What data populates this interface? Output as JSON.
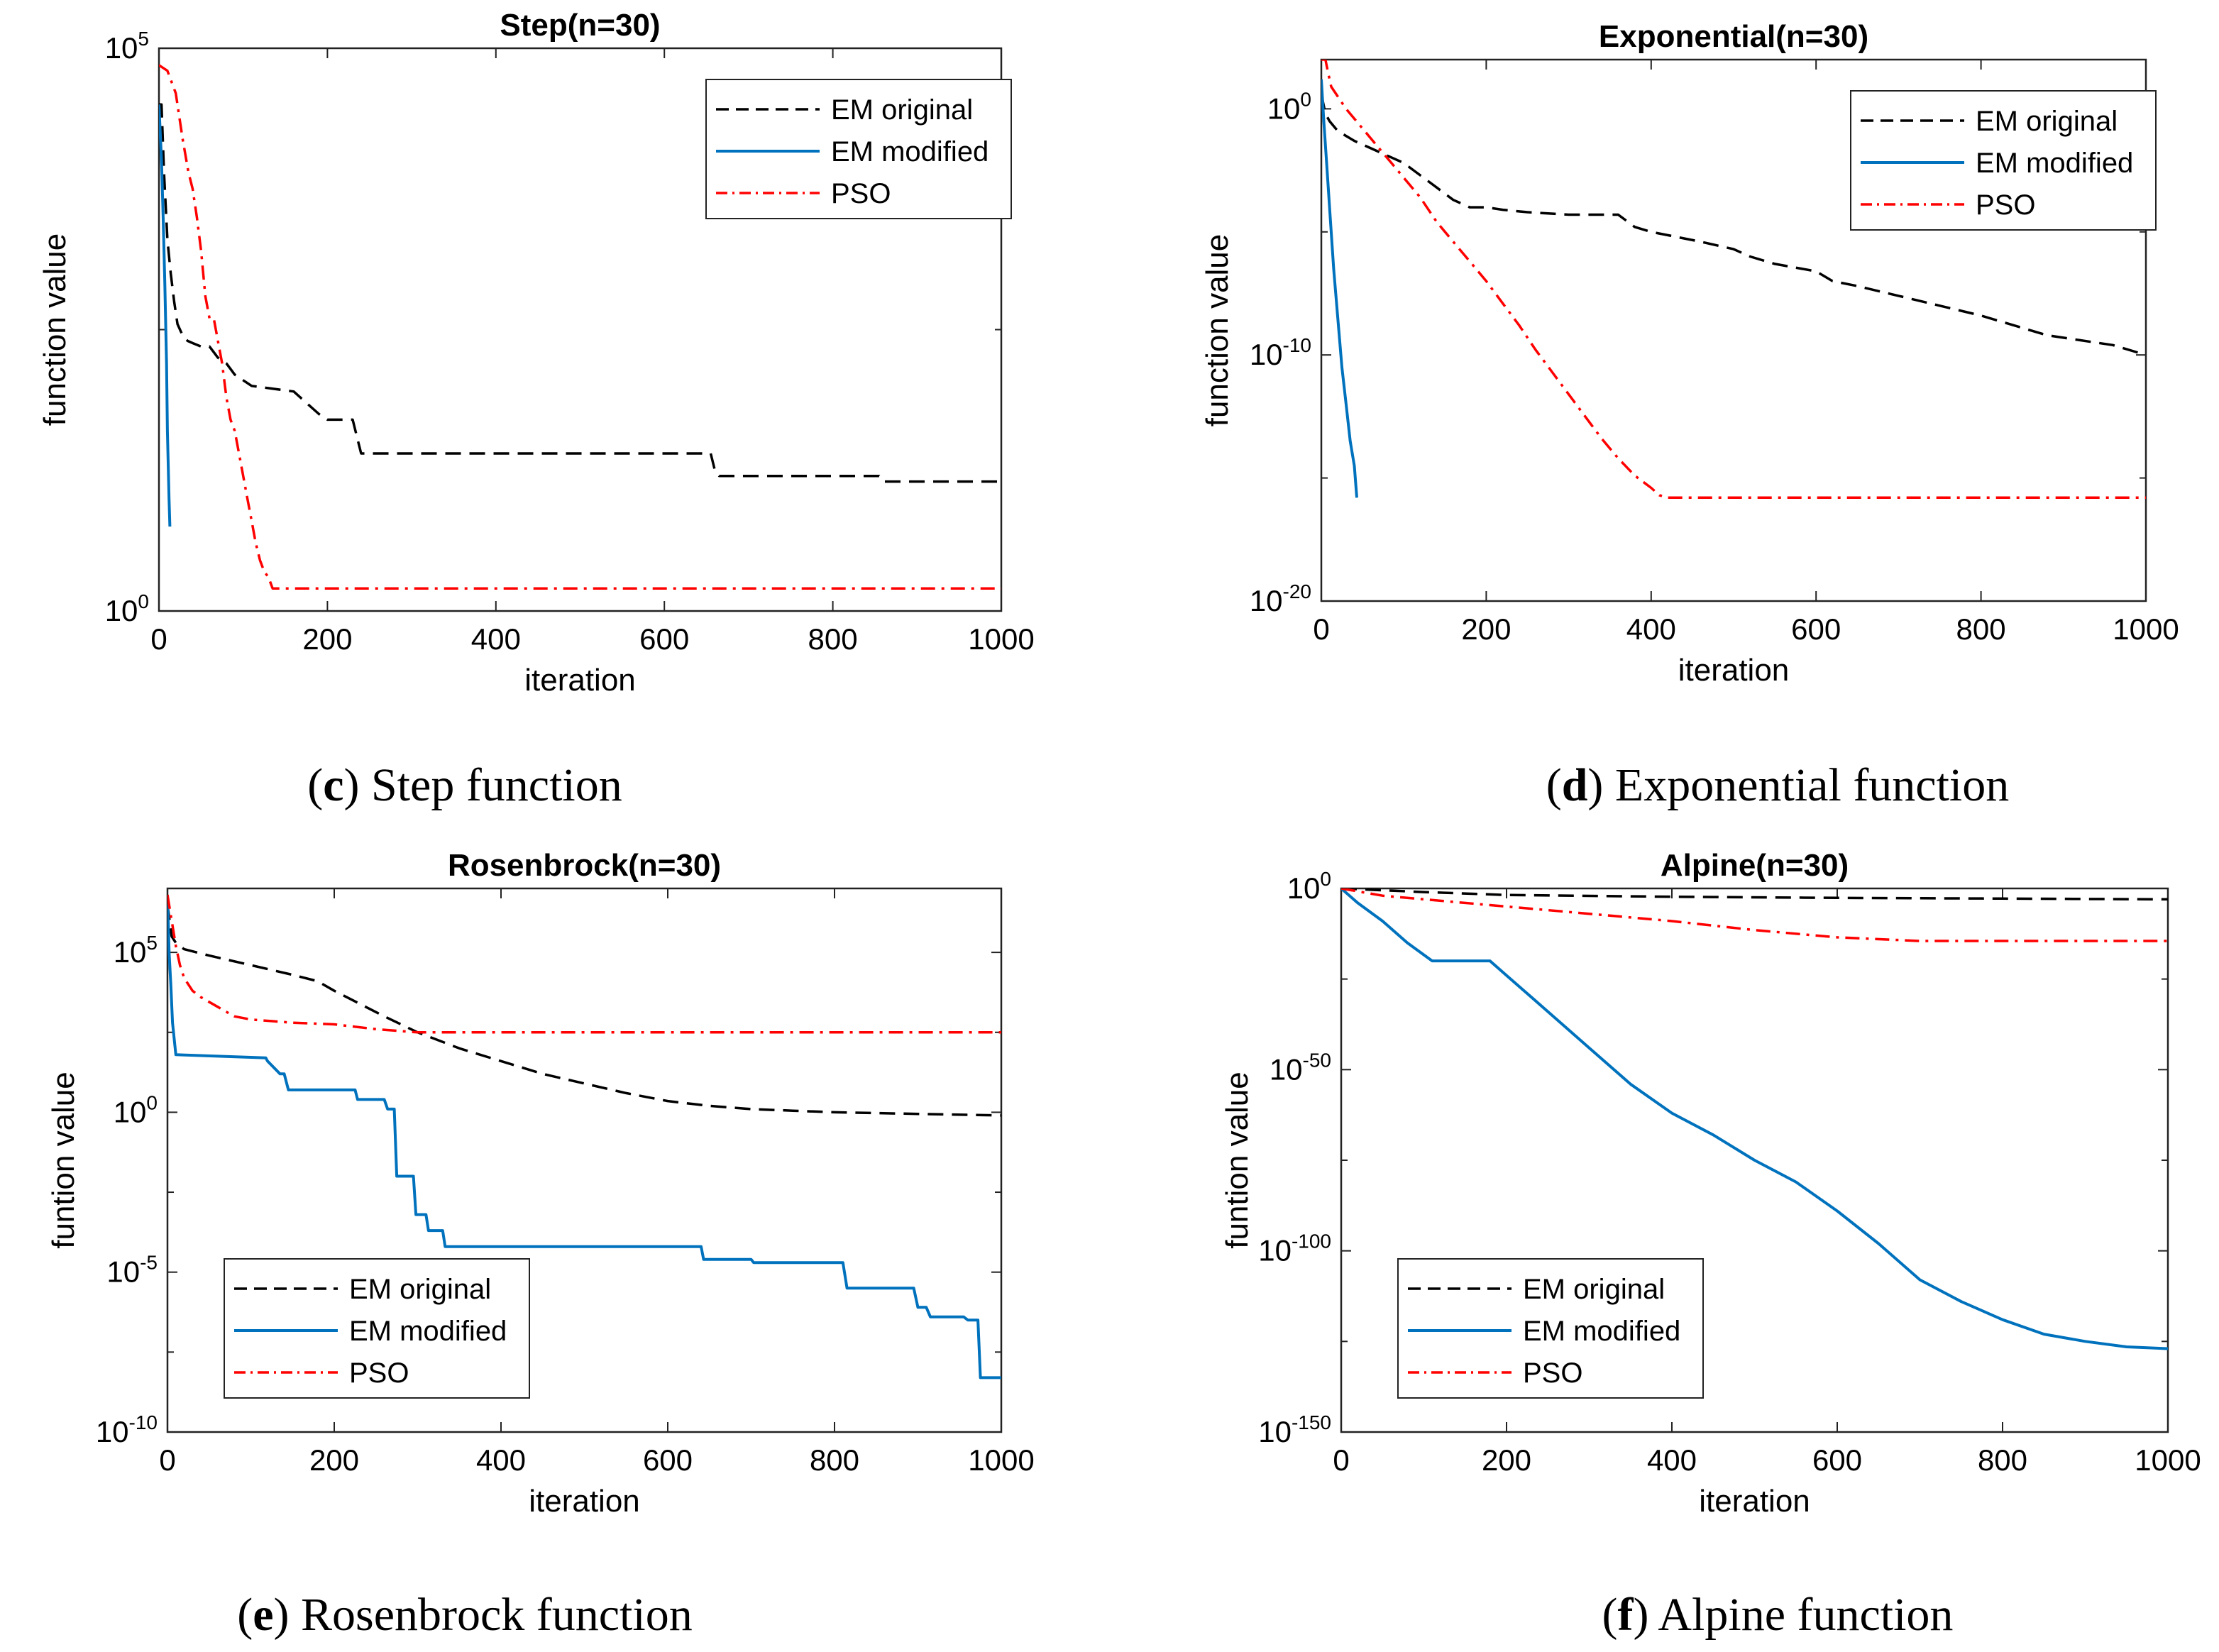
{
  "chart_data": [
    {
      "type": "line",
      "title": "Step(n=30)",
      "xlabel": "iteration",
      "ylabel": "function value",
      "xlim": [
        0,
        1000
      ],
      "ylim_log10": [
        0,
        5
      ],
      "yscale": "log",
      "xticks": [
        "0",
        "200",
        "400",
        "600",
        "800",
        "1000"
      ],
      "yticks": [
        {
          "base": "10",
          "exp": "0",
          "v": 0
        },
        {
          "base": "10",
          "exp": "5",
          "v": 5
        }
      ],
      "caption": {
        "letter": "c",
        "text": " Step function"
      },
      "legend_position": "top-right",
      "legend": [
        "EM original",
        "EM modified",
        "PSO"
      ],
      "series": [
        {
          "name": "EM original",
          "style": "dashed",
          "color": "#000000",
          "x": [
            0,
            3,
            6,
            10,
            14,
            18,
            22,
            28,
            34,
            40,
            50,
            60,
            70,
            80,
            90,
            110,
            160,
            175,
            190,
            200,
            230,
            235,
            240,
            260,
            600,
            655,
            660,
            665,
            850,
            855,
            860,
            1000
          ],
          "y": [
            4.5,
            4.5,
            3.9,
            3.3,
            3.0,
            2.75,
            2.55,
            2.45,
            2.4,
            2.38,
            2.35,
            2.35,
            2.25,
            2.2,
            2.1,
            2.0,
            1.95,
            1.85,
            1.75,
            1.7,
            1.7,
            1.55,
            1.4,
            1.4,
            1.4,
            1.4,
            1.25,
            1.2,
            1.2,
            1.2,
            1.15,
            1.15
          ]
        },
        {
          "name": "EM modified",
          "style": "solid",
          "color": "#0072BD",
          "x": [
            0,
            3,
            5,
            7,
            9,
            10,
            12,
            13
          ],
          "y": [
            4.5,
            4.0,
            3.5,
            2.9,
            2.2,
            1.6,
            1.0,
            0.75
          ]
        },
        {
          "name": "PSO",
          "style": "dashdot",
          "color": "#FF0000",
          "x": [
            0,
            10,
            20,
            28,
            35,
            40,
            45,
            50,
            55,
            60,
            65,
            70,
            75,
            80,
            85,
            90,
            95,
            100,
            105,
            110,
            115,
            120,
            125,
            130,
            135,
            1000
          ],
          "y": [
            4.85,
            4.8,
            4.6,
            4.2,
            3.9,
            3.75,
            3.5,
            3.2,
            2.8,
            2.6,
            2.6,
            2.4,
            2.2,
            1.9,
            1.7,
            1.6,
            1.4,
            1.2,
            1.0,
            0.8,
            0.6,
            0.45,
            0.35,
            0.3,
            0.2,
            0.2
          ]
        }
      ]
    },
    {
      "type": "line",
      "title": "Exponential(n=30)",
      "xlabel": "iteration",
      "ylabel": "function value",
      "xlim": [
        0,
        1000
      ],
      "ylim_log10": [
        -20,
        2
      ],
      "yscale": "log",
      "xticks": [
        "0",
        "200",
        "400",
        "600",
        "800",
        "1000"
      ],
      "yticks": [
        {
          "base": "10",
          "exp": "0",
          "v": 0
        },
        {
          "base": "10",
          "exp": "-10",
          "v": -10
        },
        {
          "base": "10",
          "exp": "-20",
          "v": -20
        }
      ],
      "caption": {
        "letter": "d",
        "text": " Exponential function"
      },
      "legend_position": "top-right",
      "legend": [
        "EM original",
        "EM modified",
        "PSO"
      ],
      "series": [
        {
          "name": "EM original",
          "style": "dashed",
          "color": "#000000",
          "x": [
            0,
            5,
            10,
            20,
            40,
            60,
            80,
            100,
            120,
            140,
            160,
            180,
            200,
            220,
            250,
            300,
            320,
            360,
            380,
            400,
            430,
            460,
            500,
            520,
            550,
            600,
            620,
            650,
            700,
            750,
            800,
            850,
            880,
            920,
            960,
            1000
          ],
          "y": [
            0.6,
            -0.2,
            -0.5,
            -0.9,
            -1.3,
            -1.6,
            -1.9,
            -2.2,
            -2.7,
            -3.2,
            -3.7,
            -4.0,
            -4.0,
            -4.1,
            -4.2,
            -4.3,
            -4.3,
            -4.3,
            -4.8,
            -5.0,
            -5.2,
            -5.4,
            -5.7,
            -6.0,
            -6.3,
            -6.6,
            -7.0,
            -7.2,
            -7.6,
            -8.0,
            -8.4,
            -8.9,
            -9.2,
            -9.4,
            -9.6,
            -10.0
          ]
        },
        {
          "name": "EM modified",
          "style": "solid",
          "color": "#0072BD",
          "x": [
            0,
            3,
            6,
            10,
            15,
            20,
            25,
            30,
            35,
            40,
            43
          ],
          "y": [
            1.2,
            -0.5,
            -2.0,
            -4.0,
            -6.5,
            -8.5,
            -10.5,
            -12.0,
            -13.5,
            -14.5,
            -15.8
          ]
        },
        {
          "name": "PSO",
          "style": "dashdot",
          "color": "#FF0000",
          "x": [
            0,
            5,
            8,
            12,
            20,
            30,
            40,
            50,
            60,
            70,
            80,
            90,
            100,
            120,
            140,
            160,
            180,
            200,
            220,
            240,
            260,
            280,
            300,
            320,
            340,
            360,
            380,
            400,
            410,
            420,
            1000
          ],
          "y": [
            2.0,
            2.0,
            1.5,
            0.9,
            0.5,
            0.0,
            -0.4,
            -0.8,
            -1.2,
            -1.6,
            -2.0,
            -2.4,
            -2.8,
            -3.6,
            -4.6,
            -5.4,
            -6.2,
            -7.0,
            -7.9,
            -8.8,
            -9.8,
            -10.7,
            -11.6,
            -12.5,
            -13.4,
            -14.2,
            -14.9,
            -15.4,
            -15.7,
            -15.8,
            -15.8
          ]
        }
      ]
    },
    {
      "type": "line",
      "title": "Rosenbrock(n=30)",
      "xlabel": "iteration",
      "ylabel": "funtion value",
      "xlim": [
        0,
        1000
      ],
      "ylim_log10": [
        -10,
        7
      ],
      "yscale": "log",
      "xticks": [
        "0",
        "200",
        "400",
        "600",
        "800",
        "1000"
      ],
      "yticks": [
        {
          "base": "10",
          "exp": "5",
          "v": 5
        },
        {
          "base": "10",
          "exp": "0",
          "v": 0
        },
        {
          "base": "10",
          "exp": "-5",
          "v": -5
        },
        {
          "base": "10",
          "exp": "-10",
          "v": -10
        }
      ],
      "caption": {
        "letter": "e",
        "text": " Rosenbrock function"
      },
      "legend_position": "bottom-left",
      "legend": [
        "EM original",
        "EM modified",
        "PSO"
      ],
      "series": [
        {
          "name": "EM original",
          "style": "dashed",
          "color": "#000000",
          "x": [
            0,
            5,
            10,
            20,
            50,
            100,
            150,
            180,
            200,
            230,
            260,
            300,
            350,
            400,
            450,
            500,
            550,
            600,
            650,
            700,
            750,
            800,
            900,
            1000
          ],
          "y": [
            6.5,
            5.5,
            5.3,
            5.1,
            4.9,
            4.6,
            4.3,
            4.1,
            3.8,
            3.4,
            3.0,
            2.5,
            2.0,
            1.6,
            1.2,
            0.9,
            0.6,
            0.35,
            0.2,
            0.1,
            0.05,
            0.0,
            -0.05,
            -0.1
          ]
        },
        {
          "name": "EM modified",
          "style": "solid",
          "color": "#0072BD",
          "x": [
            0,
            2,
            4,
            6,
            10,
            118,
            120,
            135,
            140,
            145,
            148,
            225,
            228,
            260,
            264,
            272,
            275,
            295,
            298,
            310,
            313,
            330,
            333,
            640,
            643,
            700,
            703,
            810,
            815,
            895,
            900,
            910,
            915,
            955,
            960,
            972,
            975,
            1000
          ],
          "y": [
            6.8,
            5.0,
            4.0,
            2.8,
            1.8,
            1.7,
            1.6,
            1.2,
            1.2,
            0.7,
            0.7,
            0.7,
            0.4,
            0.4,
            0.1,
            0.1,
            -2.0,
            -2.0,
            -3.2,
            -3.2,
            -3.7,
            -3.7,
            -4.2,
            -4.2,
            -4.6,
            -4.6,
            -4.7,
            -4.7,
            -5.5,
            -5.5,
            -6.1,
            -6.1,
            -6.4,
            -6.4,
            -6.5,
            -6.5,
            -8.3,
            -8.3
          ]
        },
        {
          "name": "PSO",
          "style": "dashdot",
          "color": "#FF0000",
          "x": [
            0,
            5,
            10,
            15,
            20,
            30,
            40,
            60,
            80,
            100,
            150,
            200,
            250,
            300,
            400,
            500,
            700,
            1000
          ],
          "y": [
            6.8,
            6.0,
            5.2,
            4.6,
            4.2,
            3.8,
            3.6,
            3.3,
            3.0,
            2.9,
            2.8,
            2.75,
            2.6,
            2.5,
            2.5,
            2.5,
            2.5,
            2.5
          ]
        }
      ]
    },
    {
      "type": "line",
      "title": "Alpine(n=30)",
      "xlabel": "iteration",
      "ylabel": "funtion value",
      "xlim": [
        0,
        1000
      ],
      "ylim_log10": [
        -150,
        0
      ],
      "yscale": "log",
      "xticks": [
        "0",
        "200",
        "400",
        "600",
        "800",
        "1000"
      ],
      "yticks": [
        {
          "base": "10",
          "exp": "0",
          "v": 0
        },
        {
          "base": "10",
          "exp": "-50",
          "v": -50
        },
        {
          "base": "10",
          "exp": "-100",
          "v": -100
        },
        {
          "base": "10",
          "exp": "-150",
          "v": -150
        }
      ],
      "caption": {
        "letter": "f",
        "text": " Alpine function"
      },
      "legend_position": "bottom-left",
      "legend": [
        "EM original",
        "EM modified",
        "PSO"
      ],
      "series": [
        {
          "name": "EM original",
          "style": "dashed",
          "color": "#000000",
          "x": [
            0,
            100,
            200,
            400,
            600,
            800,
            1000
          ],
          "y": [
            0,
            -1.0,
            -1.8,
            -2.3,
            -2.6,
            -2.8,
            -3.0
          ]
        },
        {
          "name": "EM modified",
          "style": "solid",
          "color": "#0072BD",
          "x": [
            0,
            20,
            50,
            80,
            110,
            180,
            200,
            250,
            300,
            350,
            400,
            450,
            500,
            550,
            600,
            650,
            700,
            750,
            800,
            850,
            900,
            950,
            1000
          ],
          "y": [
            0,
            -4.0,
            -9.0,
            -15.0,
            -20.0,
            -20.0,
            -24.0,
            -34.0,
            -44.0,
            -54.0,
            -62.0,
            -68.0,
            -75.0,
            -81.0,
            -89.0,
            -98.0,
            -108.0,
            -114.0,
            -119.0,
            -123.0,
            -125.0,
            -126.5,
            -127.0
          ]
        },
        {
          "name": "PSO",
          "style": "dashdot",
          "color": "#FF0000",
          "x": [
            0,
            50,
            100,
            200,
            300,
            400,
            500,
            600,
            700,
            800,
            1000
          ],
          "y": [
            0,
            -2.0,
            -3.0,
            -5.0,
            -7.0,
            -9.0,
            -11.5,
            -13.5,
            -14.5,
            -14.5,
            -14.5
          ]
        }
      ]
    }
  ]
}
